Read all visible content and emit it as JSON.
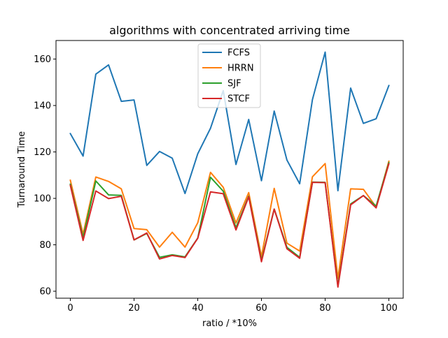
{
  "chart_data": {
    "type": "line",
    "title": "algorithms with concentrated arriving time",
    "xlabel": "ratio / *10%",
    "ylabel": "Turnaround Time",
    "xlim": [
      -4.5,
      104.5
    ],
    "ylim": [
      57,
      168
    ],
    "xticks": [
      0,
      20,
      40,
      60,
      80,
      100
    ],
    "yticks": [
      60,
      80,
      100,
      120,
      140,
      160
    ],
    "grid": false,
    "legend_position": "top-center",
    "x": [
      0,
      4,
      8,
      12,
      16,
      20,
      24,
      28,
      32,
      36,
      40,
      44,
      48,
      52,
      56,
      60,
      64,
      68,
      72,
      76,
      80,
      84,
      88,
      92,
      96,
      100
    ],
    "series": [
      {
        "name": "FCFS",
        "color": "#1f77b4",
        "values": [
          127.9,
          118.2,
          153.5,
          157.5,
          141.8,
          142.4,
          114.2,
          120.2,
          117.3,
          102.1,
          119.2,
          130.2,
          146.4,
          114.6,
          134.0,
          107.6,
          137.6,
          116.5,
          106.3,
          142.5,
          163.0,
          103.3,
          147.5,
          132.3,
          134.3,
          148.6
        ]
      },
      {
        "name": "HRRN",
        "color": "#ff7f0e",
        "values": [
          107.8,
          84.6,
          109.2,
          107.3,
          104.1,
          87.0,
          86.5,
          79.0,
          85.4,
          79.0,
          89.5,
          111.2,
          104.8,
          89.4,
          102.5,
          74.9,
          104.3,
          80.7,
          77.3,
          109.3,
          115.0,
          65.5,
          104.1,
          103.9,
          96.3,
          116.0
        ]
      },
      {
        "name": "SJF",
        "color": "#2ca02c",
        "values": [
          106.1,
          83.1,
          107.5,
          101.5,
          101.3,
          82.1,
          84.9,
          74.6,
          75.7,
          74.8,
          82.9,
          109.1,
          103.1,
          87.4,
          100.9,
          73.3,
          95.4,
          78.9,
          74.6,
          107.0,
          106.9,
          62.4,
          97.6,
          101.2,
          96.7,
          115.4
        ]
      },
      {
        "name": "STCF",
        "color": "#d62728",
        "values": [
          105.6,
          81.9,
          103.2,
          99.9,
          100.9,
          82.1,
          85.1,
          73.9,
          75.4,
          74.5,
          82.8,
          102.8,
          102.0,
          86.4,
          100.7,
          72.7,
          95.4,
          78.3,
          74.2,
          106.9,
          106.8,
          61.8,
          97.2,
          101.2,
          95.9,
          114.9
        ]
      }
    ]
  }
}
